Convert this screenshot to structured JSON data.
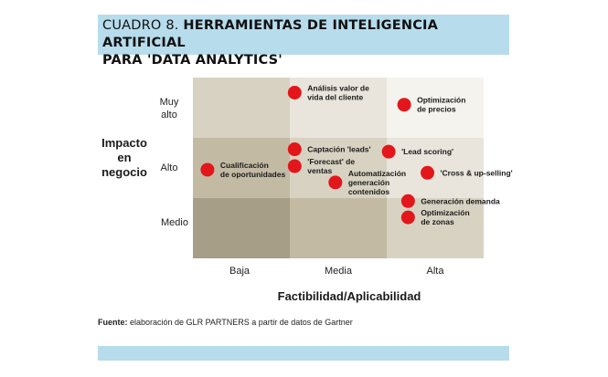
{
  "header": {
    "label": "CUADRO 8.",
    "title_line1": "HERRAMIENTAS DE INTELIGENCIA ARTIFICIAL",
    "title_line2": "PARA 'DATA ANALYTICS'"
  },
  "source": {
    "prefix": "Fuente:",
    "text": "elaboración de GLR PARTNERS a partir de datos de Gartner"
  },
  "chart_data": {
    "type": "scatter",
    "xlabel": "Factibilidad/Aplicabilidad",
    "ylabel_lines": [
      "Impacto",
      "en",
      "negocio"
    ],
    "x_categories": [
      "Baja",
      "Media",
      "Alta"
    ],
    "y_categories": [
      "Medio",
      "Alto",
      "Muy alto"
    ],
    "y_tick_lines": [
      [
        "Medio"
      ],
      [
        "Alto"
      ],
      [
        "Muy",
        "alto"
      ]
    ],
    "marker_color": "#e3161b",
    "cell_colors": [
      [
        "#a69e86",
        "#c3baa4",
        "#d8d2c2"
      ],
      [
        "#c3baa4",
        "#d8d2c2",
        "#e9e5dc"
      ],
      [
        "#d8d2c2",
        "#e9e5dc",
        "#f5f3ee"
      ]
    ],
    "points": [
      {
        "x": 1.05,
        "y": 2.75,
        "label": [
          "Análisis valor de",
          "vida del cliente"
        ]
      },
      {
        "x": 2.18,
        "y": 2.55,
        "label": [
          "Optimización",
          "de precios"
        ]
      },
      {
        "x": 0.15,
        "y": 1.47,
        "label": [
          "Cualificación",
          "de oportunidades"
        ]
      },
      {
        "x": 1.05,
        "y": 1.81,
        "label": [
          "Captación 'leads'"
        ]
      },
      {
        "x": 1.05,
        "y": 1.53,
        "label": [
          "'Forecast' de",
          "ventas"
        ]
      },
      {
        "x": 1.47,
        "y": 1.26,
        "label": [
          "Automatización",
          "generación",
          "contenidos"
        ]
      },
      {
        "x": 2.02,
        "y": 1.77,
        "label": [
          "'Lead scoring'"
        ]
      },
      {
        "x": 2.42,
        "y": 1.42,
        "label": [
          "'Cross & up-selling'"
        ]
      },
      {
        "x": 2.22,
        "y": 0.95,
        "label": [
          "Generación demanda"
        ]
      },
      {
        "x": 2.22,
        "y": 0.68,
        "label": [
          "Optimización",
          "de zonas"
        ]
      }
    ]
  }
}
